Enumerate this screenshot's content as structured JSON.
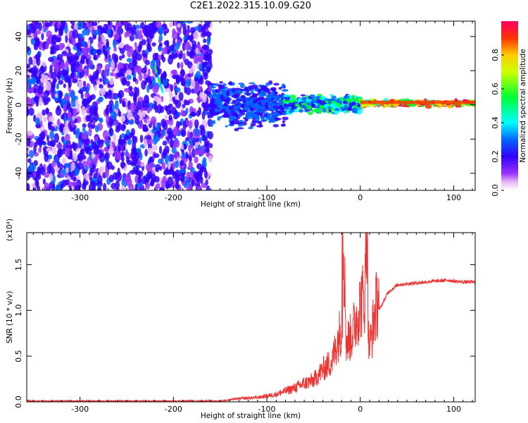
{
  "title": "C2E1.2022.315.10.09.G20",
  "chart_data": [
    {
      "type": "heatmap",
      "xlabel": "Height of straight line (km)",
      "ylabel": "Frequency (Hz)",
      "xlim": [
        -357,
        123
      ],
      "ylim": [
        -50,
        49
      ],
      "xticks": [
        -300,
        -200,
        -100,
        0,
        100
      ],
      "xtick_labels": [
        "-300",
        "-200",
        "-100",
        "0",
        "100"
      ],
      "yticks": [
        -40,
        -20,
        0,
        20,
        40
      ],
      "ytick_labels": [
        "-40",
        "-20",
        "0",
        "20",
        "40"
      ],
      "colorbar": {
        "label": "Normalized spectral amplitude",
        "ticks": [
          0.0,
          0.2,
          0.4,
          0.6,
          0.8
        ],
        "tick_labels": [
          "0.0",
          "0.2",
          "0.4",
          "0.6",
          "0.8"
        ],
        "range": [
          0,
          1
        ]
      },
      "regions": [
        {
          "x": [
            -357,
            -160
          ],
          "y": [
            -50,
            49
          ],
          "amplitude": 0.15
        },
        {
          "x": [
            -160,
            -80
          ],
          "y": [
            -15,
            15
          ],
          "amplitude": 0.25
        },
        {
          "x": [
            -80,
            0
          ],
          "y": [
            -5,
            6
          ],
          "amplitude": 0.4
        },
        {
          "x": [
            0,
            123
          ],
          "y": [
            -1,
            3
          ],
          "amplitude": 0.9
        },
        {
          "x": [
            -221,
            -211
          ],
          "y": [
            7,
            24
          ],
          "amplitude": 0.4
        }
      ]
    },
    {
      "type": "line",
      "xlabel": "Height of straight line (km)",
      "ylabel": "SNR (10 * v/v)",
      "y_multiplier": "(x10⁴)",
      "xlim": [
        -357,
        123
      ],
      "ylim": [
        0,
        1.85
      ],
      "xticks": [
        -300,
        -200,
        -100,
        0,
        100
      ],
      "xtick_labels": [
        "-300",
        "-200",
        "-100",
        "0",
        "100"
      ],
      "yticks": [
        0,
        0.5,
        1.0,
        1.5
      ],
      "ytick_labels": [
        "0.0",
        "0.5",
        "1.0",
        "1.5"
      ],
      "color": "#ee3333",
      "x": [
        -357,
        -300,
        -200,
        -150,
        -130,
        -110,
        -90,
        -80,
        -70,
        -60,
        -50,
        -40,
        -30,
        -25,
        -20,
        -19,
        -15,
        -10,
        -5,
        0,
        5,
        7,
        9,
        12,
        15,
        20,
        30,
        40,
        60,
        80,
        95,
        100,
        110,
        123
      ],
      "y": [
        0.01,
        0.01,
        0.01,
        0.01,
        0.03,
        0.04,
        0.07,
        0.1,
        0.13,
        0.17,
        0.2,
        0.3,
        0.38,
        0.55,
        0.7,
        1.85,
        0.55,
        0.6,
        0.75,
        0.9,
        1.0,
        1.75,
        0.5,
        0.6,
        0.8,
        1.0,
        1.2,
        1.28,
        1.3,
        1.32,
        1.33,
        1.32,
        1.31,
        1.31
      ]
    }
  ]
}
